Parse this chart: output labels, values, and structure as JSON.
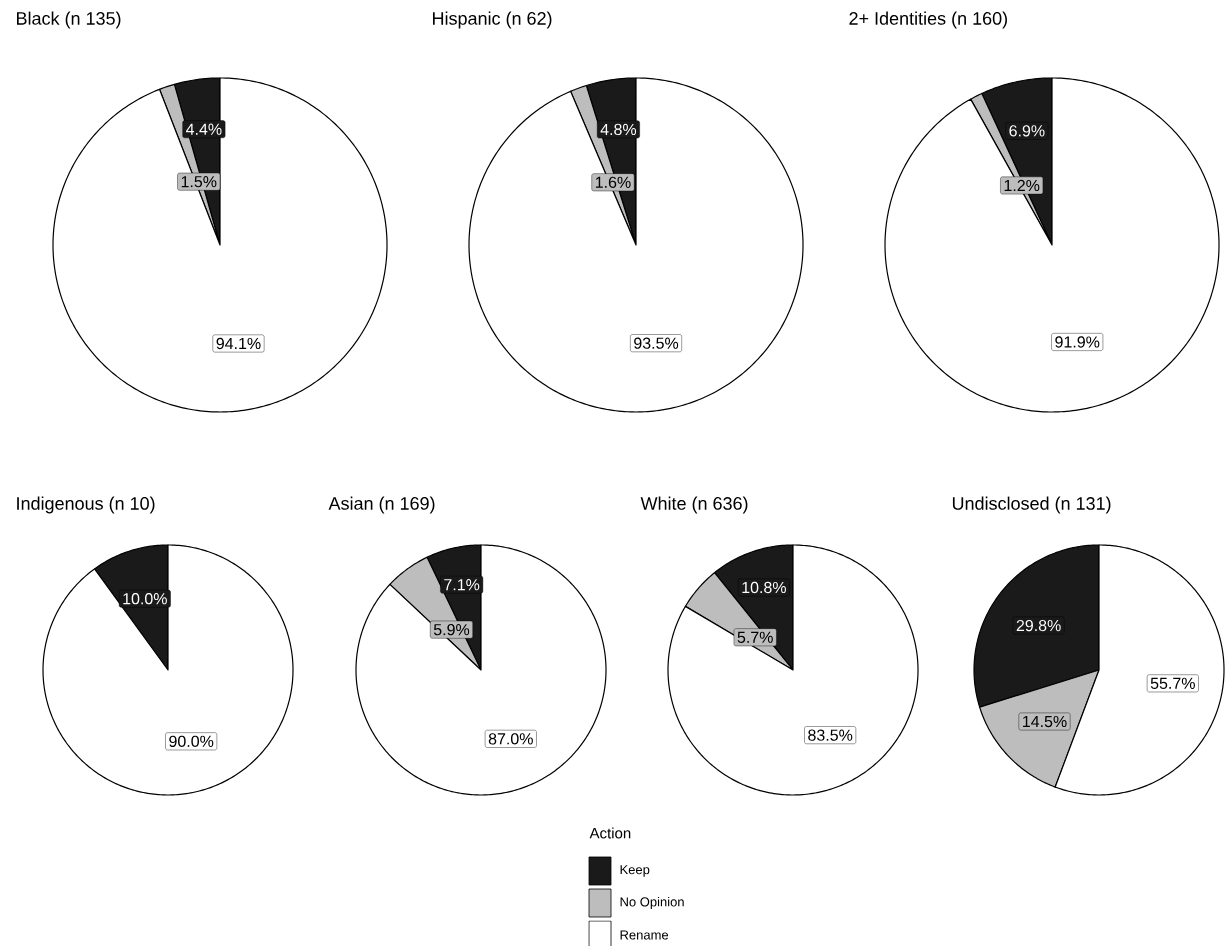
{
  "chart_data": [
    {
      "type": "pie",
      "title": "Black (n 135)",
      "categories": [
        null,
        null,
        null
      ],
      "values": [
        4.4,
        1.5,
        94.1
      ],
      "colors": [
        "#1a1a1a",
        "#bdbdbd",
        "#ffffff"
      ],
      "value_labels": [
        "4.4%",
        "1.5%",
        "94.1%"
      ]
    },
    {
      "type": "pie",
      "title": "Hispanic (n 62)",
      "categories": [
        null,
        null,
        null
      ],
      "values": [
        4.8,
        1.6,
        93.5
      ],
      "colors": [
        "#1a1a1a",
        "#bdbdbd",
        "#ffffff"
      ],
      "value_labels": [
        "4.8%",
        "1.6%",
        "93.5%"
      ]
    },
    {
      "type": "pie",
      "title": "2+ Identities (n 160)",
      "categories": [
        null,
        null,
        null
      ],
      "values": [
        6.9,
        1.2,
        91.9
      ],
      "colors": [
        "#1a1a1a",
        "#bdbdbd",
        "#ffffff"
      ],
      "value_labels": [
        "6.9%",
        "1.2%",
        "91.9%"
      ]
    },
    {
      "type": "pie",
      "title": "Indigenous (n 10)",
      "categories": [
        null,
        null,
        null
      ],
      "values": [
        10.0,
        0,
        90.0
      ],
      "colors": [
        "#1a1a1a",
        "#bdbdbd",
        "#ffffff"
      ],
      "value_labels": [
        "10.0%",
        null,
        "90.0%"
      ]
    },
    {
      "type": "pie",
      "title": "Asian (n 169)",
      "categories": [
        null,
        null,
        null
      ],
      "values": [
        7.1,
        5.9,
        87.0
      ],
      "colors": [
        "#1a1a1a",
        "#bdbdbd",
        "#ffffff"
      ],
      "value_labels": [
        "7.1%",
        "5.9%",
        "87.0%"
      ]
    },
    {
      "type": "pie",
      "title": "White (n 636)",
      "categories": [
        "Keep",
        "No Opinion",
        "Rename"
      ],
      "values": [
        10.8,
        5.7,
        83.5
      ],
      "colors": [
        "#1a1a1a",
        "#bdbdbd",
        "#ffffff"
      ],
      "value_labels": [
        "10.8%",
        "5.7%",
        "83.5%"
      ],
      "legend": "bottom",
      "legend_title": "Action"
    },
    {
      "type": "pie",
      "title": "Undisclosed (n 131)",
      "categories": [
        null,
        null,
        null
      ],
      "values": [
        29.8,
        14.5,
        55.7
      ],
      "colors": [
        "#1a1a1a",
        "#bdbdbd",
        "#ffffff"
      ],
      "value_labels": [
        "29.8%",
        "14.5%",
        "55.7%"
      ]
    }
  ]
}
